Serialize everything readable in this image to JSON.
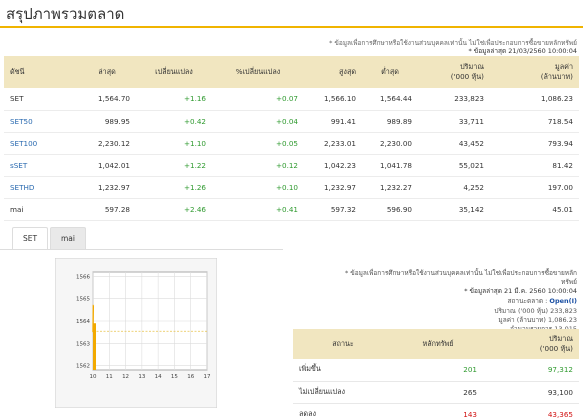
{
  "page": {
    "title": "สรุปภาพรวมตลาด"
  },
  "notes": {
    "disclaimer": "* ข้อมูลเพื่อการศึกษาหรือใช้งานส่วนบุคคลเท่านั้น ไม่ใช่เพื่อประกอบการซื้อขายหลักทรัพย์",
    "updated": "* ข้อมูลล่าสุด 21/03/2560 10:00:04"
  },
  "index_table": {
    "headers": [
      "ดัชนี",
      "ล่าสุด",
      "เปลี่ยนแปลง",
      "%เปลี่ยนแปลง",
      "สูงสุด",
      "ต่ำสุด",
      "ปริมาณ\n('000 หุ้น)",
      "มูลค่า\n(ล้านบาท)"
    ],
    "rows": [
      {
        "name": "SET",
        "last": "1,564.70",
        "chg": "+1.16",
        "pct": "+0.07",
        "high": "1,566.10",
        "low": "1,564.44",
        "vol": "233,823",
        "val": "1,086.23"
      },
      {
        "name": "SET50",
        "last": "989.95",
        "chg": "+0.42",
        "pct": "+0.04",
        "high": "991.41",
        "low": "989.89",
        "vol": "33,711",
        "val": "718.54"
      },
      {
        "name": "SET100",
        "last": "2,230.12",
        "chg": "+1.10",
        "pct": "+0.05",
        "high": "2,233.01",
        "low": "2,230.00",
        "vol": "43,452",
        "val": "793.94"
      },
      {
        "name": "sSET",
        "last": "1,042.01",
        "chg": "+1.22",
        "pct": "+0.12",
        "high": "1,042.23",
        "low": "1,041.78",
        "vol": "55,021",
        "val": "81.42"
      },
      {
        "name": "SETHD",
        "last": "1,232.97",
        "chg": "+1.26",
        "pct": "+0.10",
        "high": "1,232.97",
        "low": "1,232.27",
        "vol": "4,252",
        "val": "197.00"
      },
      {
        "name": "mai",
        "last": "597.28",
        "chg": "+2.46",
        "pct": "+0.41",
        "high": "597.32",
        "low": "596.90",
        "vol": "35,142",
        "val": "45.01"
      }
    ]
  },
  "tabs": [
    "SET",
    "mai"
  ],
  "chart_data": {
    "type": "line",
    "title": "",
    "xlabel": "",
    "ylabel": "",
    "x_ticks": [
      "10",
      "11",
      "12",
      "13",
      "14",
      "15",
      "16",
      "17"
    ],
    "y_ticks": [
      "1562",
      "1563",
      "1564",
      "1565",
      "1566"
    ],
    "ylim": [
      1561.8,
      1566.2
    ],
    "xlim": [
      10,
      17
    ],
    "series": [
      {
        "x": [
          10,
          10.02,
          10.04
        ],
        "y": [
          1563.5,
          1564.7,
          1564.7
        ]
      }
    ],
    "reference_line": 1563.54,
    "colors": {
      "line": "#f2a900",
      "ref": "#e8c24a",
      "grid": "#dcdcdc"
    }
  },
  "market_info": {
    "disclaimer_line1": "* ข้อมูลเพื่อการศึกษาหรือใช้งานส่วนบุคคลเท่านั้น ไม่ใช่เพื่อประกอบการซื้อขายหลัก",
    "disclaimer_line2": "ทรัพย์",
    "updated": "* ข้อมูลล่าสุด 21 มี.ค. 2560 10:00:04",
    "status_label": "สถานะตลาด :",
    "status_value": "Open(I)",
    "volume_label": "ปริมาณ ('000 หุ้น)",
    "volume_value": "233,823",
    "value_label": "มูลค่า (ล้านบาท)",
    "value_value": "1,086.23",
    "trades_label": "จำนวนรายการ",
    "trades_value": "13,015"
  },
  "market_table": {
    "headers": [
      "สถานะ",
      "หลักทรัพย์",
      "ปริมาณ\n('000 หุ้น)"
    ],
    "rows": [
      {
        "status": "เพิ่มขึ้น",
        "count": "201",
        "vol": "97,312",
        "color": "#2f9a2f"
      },
      {
        "status": "ไม่เปลี่ยนแปลง",
        "count": "265",
        "vol": "93,100",
        "color": "#333333"
      },
      {
        "status": "ลดลง",
        "count": "143",
        "vol": "43,365",
        "color": "#d11111"
      }
    ]
  }
}
